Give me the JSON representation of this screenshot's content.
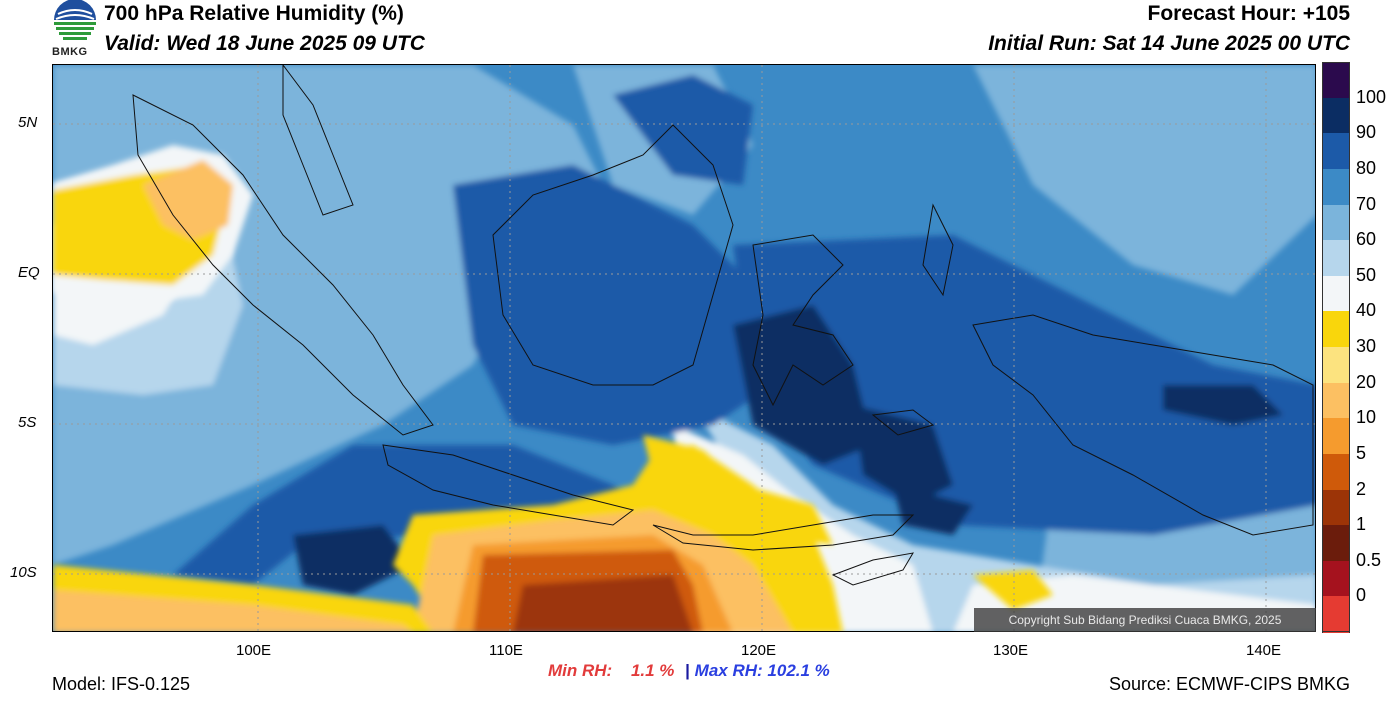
{
  "header": {
    "title": "700 hPa Relative Humidity (%)",
    "valid": "Valid: Wed 18 June 2025 09 UTC",
    "forecast_hour": "Forecast Hour: +105",
    "initial_run": "Initial Run: Sat 14 June 2025 00 UTC"
  },
  "logo": {
    "text": "BMKG"
  },
  "map": {
    "lat_labels": [
      "5N",
      "EQ",
      "5S",
      "10S"
    ],
    "lon_labels": [
      "100E",
      "110E",
      "120E",
      "130E",
      "140E"
    ],
    "lat_range": [
      -12,
      6.2
    ],
    "lon_range": [
      92,
      142.3
    ],
    "colors": {
      "sea_grid": "#9a9a9a",
      "coast": "#000000"
    }
  },
  "colorbar": {
    "labels": [
      "100",
      "90",
      "80",
      "70",
      "60",
      "50",
      "40",
      "30",
      "20",
      "10",
      "5",
      "2",
      "1",
      "0.5",
      "0"
    ],
    "colors_top_to_bottom": [
      "#2b0a4d",
      "#0b2d63",
      "#1c5aa8",
      "#3c8ac6",
      "#7bb4db",
      "#b6d6ec",
      "#f3f6f8",
      "#f9d60c",
      "#fce37f",
      "#fcc062",
      "#f59b2e",
      "#cf5a0a",
      "#9c3407",
      "#6b1c0c",
      "#a5121e",
      "#e53b32"
    ]
  },
  "copyright": "Copyright Sub Bidang Prediksi Cuaca BMKG, 2025",
  "footer": {
    "model": "Model: IFS-0.125",
    "min_rh_label": "Min RH:",
    "min_rh_value": "1.1 %",
    "separator": "|",
    "max_rh": "Max RH: 102.1 %",
    "source": "Source: ECMWF-CIPS BMKG"
  }
}
